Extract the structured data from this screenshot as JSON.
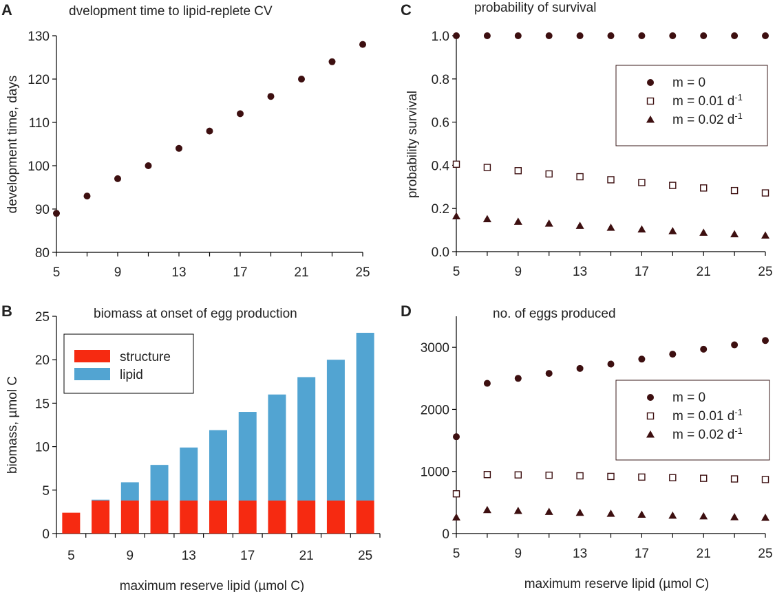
{
  "panels": {
    "A": {
      "letter": "A"
    },
    "B": {
      "letter": "B"
    },
    "C": {
      "letter": "C"
    },
    "D": {
      "letter": "D"
    }
  },
  "bottom_xlabels": {
    "left": "maximum reserve lipid (µmol C)",
    "right": "maximum reserve lipid (µmol C)"
  },
  "colors": {
    "marker": "#3d0f10",
    "structure": "#f62a11",
    "lipid": "#52a4d2",
    "axis": "#000000"
  },
  "chart_data": [
    {
      "id": "A",
      "type": "scatter",
      "title": "dvelopment time to lipid-replete CV",
      "xlabel": "",
      "ylabel": "development time, days",
      "xlim": [
        5,
        25
      ],
      "ylim": [
        80,
        130
      ],
      "xticks": [
        "5",
        "9",
        "13",
        "17",
        "21",
        "25"
      ],
      "yticks": [
        "80",
        "90",
        "100",
        "110",
        "120",
        "130"
      ],
      "x": [
        5,
        7,
        9,
        11,
        13,
        15,
        17,
        19,
        21,
        23,
        25
      ],
      "series": [
        {
          "name": "development time",
          "marker": "circle",
          "values": [
            89,
            93,
            97,
            100,
            104,
            108,
            112,
            116,
            120,
            124,
            128
          ]
        }
      ]
    },
    {
      "id": "B",
      "type": "bar",
      "stacked": true,
      "title": "biomass at onset of egg production",
      "xlabel": "maximum reserve lipid (µmol C)",
      "ylabel": "biomass, µmol C",
      "ylim": [
        0,
        25
      ],
      "categories": [
        "5",
        "7",
        "9",
        "11",
        "13",
        "15",
        "17",
        "19",
        "21",
        "23",
        "25"
      ],
      "xticks": [
        "5",
        "9",
        "13",
        "17",
        "21",
        "25"
      ],
      "yticks": [
        "0",
        "5",
        "10",
        "15",
        "20",
        "25"
      ],
      "legend_position": "top-left",
      "series": [
        {
          "name": "structure",
          "values": [
            2.4,
            3.8,
            3.8,
            3.8,
            3.8,
            3.8,
            3.8,
            3.8,
            3.8,
            3.8,
            3.8
          ]
        },
        {
          "name": "lipid",
          "values": [
            0,
            0.1,
            2.1,
            4.1,
            6.1,
            8.1,
            10.2,
            12.2,
            14.2,
            16.2,
            19.3
          ]
        }
      ]
    },
    {
      "id": "C",
      "type": "scatter",
      "title": "probability of survival",
      "xlabel": "",
      "ylabel": "probability survival",
      "xlim": [
        5,
        25
      ],
      "ylim": [
        0,
        1
      ],
      "xticks": [
        "5",
        "9",
        "13",
        "17",
        "21",
        "25"
      ],
      "yticks": [
        "0.0",
        "0.2",
        "0.4",
        "0.6",
        "0.8",
        "1.0"
      ],
      "legend_position": "top-right",
      "x": [
        5,
        7,
        9,
        11,
        13,
        15,
        17,
        19,
        21,
        23,
        25
      ],
      "series": [
        {
          "name": "m = 0",
          "unit": "",
          "marker": "circle",
          "values": [
            1,
            1,
            1,
            1,
            1,
            1,
            1,
            1,
            1,
            1,
            1
          ]
        },
        {
          "name": "m = 0.01 d",
          "unit": "-1",
          "marker": "square-open",
          "values": [
            0.405,
            0.39,
            0.375,
            0.36,
            0.347,
            0.333,
            0.32,
            0.307,
            0.295,
            0.283,
            0.272
          ]
        },
        {
          "name": "m = 0.02 d",
          "unit": "-1",
          "marker": "triangle",
          "values": [
            0.164,
            0.151,
            0.139,
            0.13,
            0.12,
            0.111,
            0.103,
            0.095,
            0.088,
            0.081,
            0.075
          ]
        }
      ]
    },
    {
      "id": "D",
      "type": "scatter",
      "title": "no. of eggs produced",
      "xlabel": "maximum reserve lipid (µmol C)",
      "ylabel": "",
      "xlim": [
        5,
        25
      ],
      "ylim": [
        0,
        3500
      ],
      "xticks": [
        "5",
        "9",
        "13",
        "17",
        "21",
        "25"
      ],
      "yticks": [
        "0",
        "1000",
        "2000",
        "3000"
      ],
      "legend_position": "center-right",
      "x": [
        5,
        7,
        9,
        11,
        13,
        15,
        17,
        19,
        21,
        23,
        25
      ],
      "series": [
        {
          "name": "m = 0",
          "unit": "",
          "marker": "circle",
          "values": [
            1560,
            2420,
            2500,
            2580,
            2660,
            2730,
            2810,
            2890,
            2970,
            3040,
            3110
          ]
        },
        {
          "name": "m = 0.01 d",
          "unit": "-1",
          "marker": "square-open",
          "values": [
            640,
            950,
            945,
            940,
            930,
            920,
            910,
            900,
            890,
            880,
            870
          ]
        },
        {
          "name": "m = 0.02 d",
          "unit": "-1",
          "marker": "triangle",
          "values": [
            260,
            380,
            365,
            350,
            335,
            320,
            305,
            290,
            278,
            265,
            255
          ]
        }
      ]
    }
  ]
}
